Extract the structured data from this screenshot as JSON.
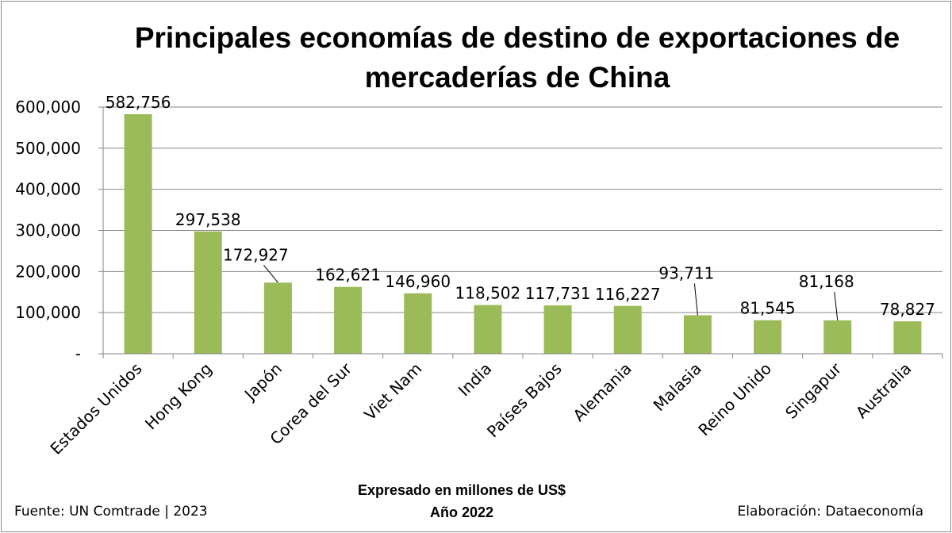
{
  "chart_data": {
    "type": "bar",
    "title": "Principales economías de destino de exportaciones de mercaderías de China",
    "title_lines": [
      "Principales economías de destino de exportaciones de",
      "mercaderías de China"
    ],
    "categories": [
      "Estados Unidos",
      "Hong Kong",
      "Japón",
      "Corea del Sur",
      "Viet Nam",
      "India",
      "Países Bajos",
      "Alemania",
      "Malasia",
      "Reino Unido",
      "Singapur",
      "Australia"
    ],
    "values": [
      582756,
      297538,
      172927,
      162621,
      146960,
      118502,
      117731,
      116227,
      93711,
      81545,
      81168,
      78827
    ],
    "data_labels": [
      "582,756",
      "297,538",
      "172,927",
      "162,621",
      "146,960",
      "118,502",
      "117,731",
      "116,227",
      "93,711",
      "81,545",
      "81,168",
      "78,827"
    ],
    "y_tick_labels": [
      "-",
      "100,000",
      "200,000",
      "300,000",
      "400,000",
      "500,000",
      "600,000"
    ],
    "ylim": [
      0,
      600000
    ],
    "y_step": 100000,
    "grid": true,
    "legend": "none",
    "bar_color": "#9bbb59",
    "grid_color": "#868686",
    "xlabel": "",
    "ylabel": ""
  },
  "footer": {
    "units_line": "Expresado en millones de US$",
    "year_line": "Año 2022",
    "source": "Fuente:  UN Comtrade | 2023",
    "credit": "Elaboración: Dataeconomía"
  }
}
